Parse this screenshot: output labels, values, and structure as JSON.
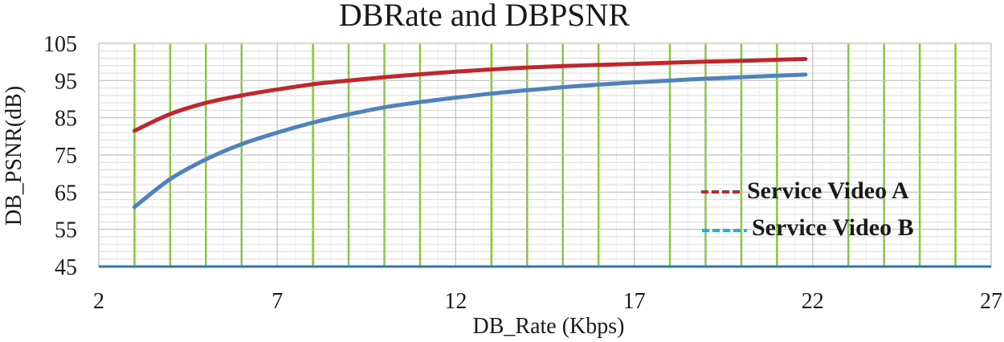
{
  "chart_data": {
    "type": "line",
    "title": "DBRate and DBPSNR",
    "xlabel": "DB_Rate (Kbps)",
    "ylabel": "DB_PSNR(dB)",
    "xlim": [
      2,
      27
    ],
    "ylim": [
      45,
      105
    ],
    "x_ticks": [
      "2",
      "7",
      "12",
      "17",
      "22",
      "27"
    ],
    "y_ticks": [
      "45",
      "55",
      "65",
      "75",
      "85",
      "95",
      "105"
    ],
    "x_tick_values": [
      2,
      7,
      12,
      17,
      22,
      27
    ],
    "y_tick_values": [
      45,
      55,
      65,
      75,
      85,
      95,
      105
    ],
    "minor_grid_x": [
      3,
      4,
      5,
      6,
      8,
      9,
      10,
      11,
      13,
      14,
      15,
      16,
      18,
      19,
      20,
      21,
      23,
      24,
      25,
      26
    ],
    "minor_grid_y": [
      47,
      49,
      51,
      53,
      57,
      59,
      61,
      63,
      67,
      69,
      71,
      73,
      77,
      79,
      81,
      83,
      87,
      89,
      91,
      93,
      97,
      99,
      101,
      103
    ],
    "green_gridlines_x": [
      3,
      4,
      5,
      6,
      8,
      9,
      10,
      11,
      13,
      14,
      15,
      16,
      18,
      19,
      20,
      21,
      23,
      24,
      25,
      26
    ],
    "series": [
      {
        "name": "Service Video A",
        "color": "#c0272d",
        "x": [
          3,
          4,
          5,
          6,
          7,
          8,
          9,
          10,
          11,
          12,
          13,
          14,
          15,
          16,
          17,
          18,
          19,
          20,
          21,
          21.8
        ],
        "y": [
          81.5,
          86,
          89,
          91,
          92.6,
          94,
          95,
          95.9,
          96.7,
          97.4,
          98,
          98.5,
          98.9,
          99.2,
          99.5,
          99.8,
          100.1,
          100.3,
          100.6,
          100.8
        ]
      },
      {
        "name": "Service Video B",
        "color": "#4f81bd",
        "x": [
          3,
          4,
          5,
          6,
          7,
          8,
          9,
          10,
          11,
          12,
          13,
          14,
          15,
          16,
          17,
          18,
          19,
          20,
          21,
          21.8
        ],
        "y": [
          61,
          68.5,
          73.8,
          77.9,
          81,
          83.7,
          85.9,
          87.8,
          89.2,
          90.4,
          91.5,
          92.4,
          93.2,
          93.9,
          94.5,
          95,
          95.5,
          95.9,
          96.3,
          96.6
        ]
      }
    ],
    "legend": {
      "position": "right",
      "entries": [
        {
          "label": "Service Video A",
          "color": "#c0272d"
        },
        {
          "label": "Service Video B",
          "color": "#29abe2"
        }
      ]
    },
    "baseline_color": "#2e75b6",
    "green_grid_color": "#8cc63f",
    "minor_grid_color": "#d9d9d9"
  }
}
